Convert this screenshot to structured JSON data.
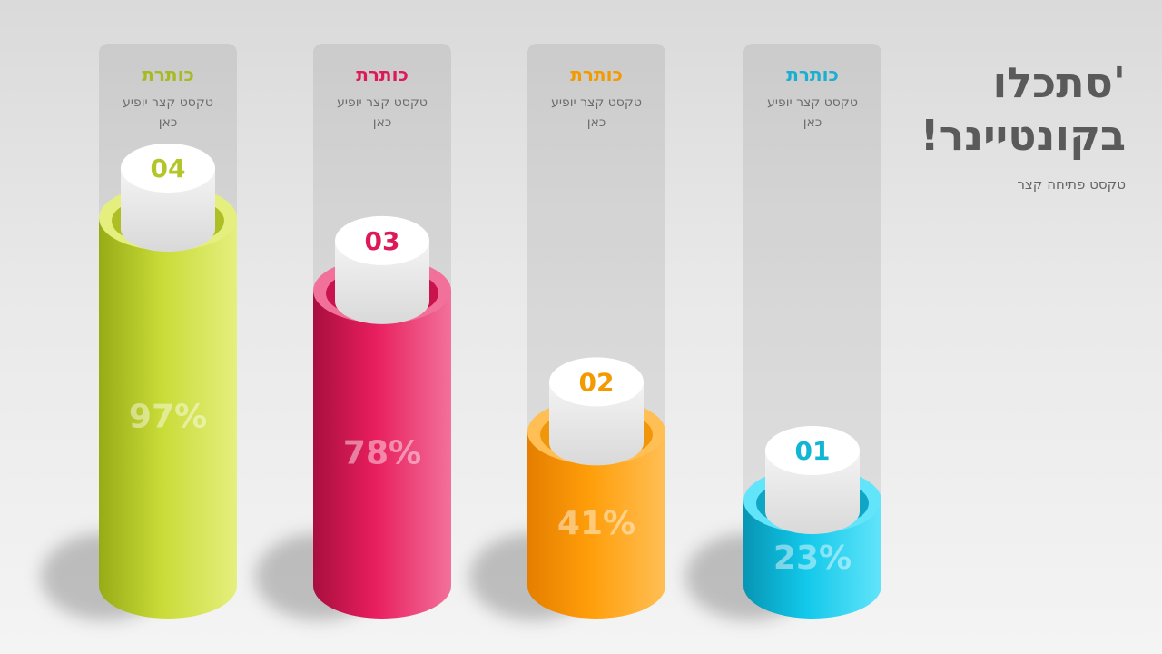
{
  "header": {
    "title_line1": "'סתכלו",
    "title_line2": "בקונטיינר!",
    "subtitle": "טקסט פתיחה קצר"
  },
  "columns": [
    {
      "number": "01",
      "heading": "כותרת",
      "desc_line1": "טקסט קצר יופיע",
      "desc_line2": "כאן",
      "percent": "23%",
      "color": "#10bde0"
    },
    {
      "number": "02",
      "heading": "כותרת",
      "desc_line1": "טקסט קצר יופיע",
      "desc_line2": "כאן",
      "percent": "41%",
      "color": "#f5a000"
    },
    {
      "number": "03",
      "heading": "כותרת",
      "desc_line1": "טקסט קצר יופיע",
      "desc_line2": "כאן",
      "percent": "78%",
      "color": "#e01a5a"
    },
    {
      "number": "04",
      "heading": "כותרת",
      "desc_line1": "טקסט קצר יופיע",
      "desc_line2": "כאן",
      "percent": "97%",
      "color": "#b2c62a"
    }
  ],
  "chart_data": {
    "type": "bar",
    "categories": [
      "01",
      "02",
      "03",
      "04"
    ],
    "values": [
      23,
      41,
      78,
      97
    ],
    "ylim": [
      0,
      100
    ]
  }
}
